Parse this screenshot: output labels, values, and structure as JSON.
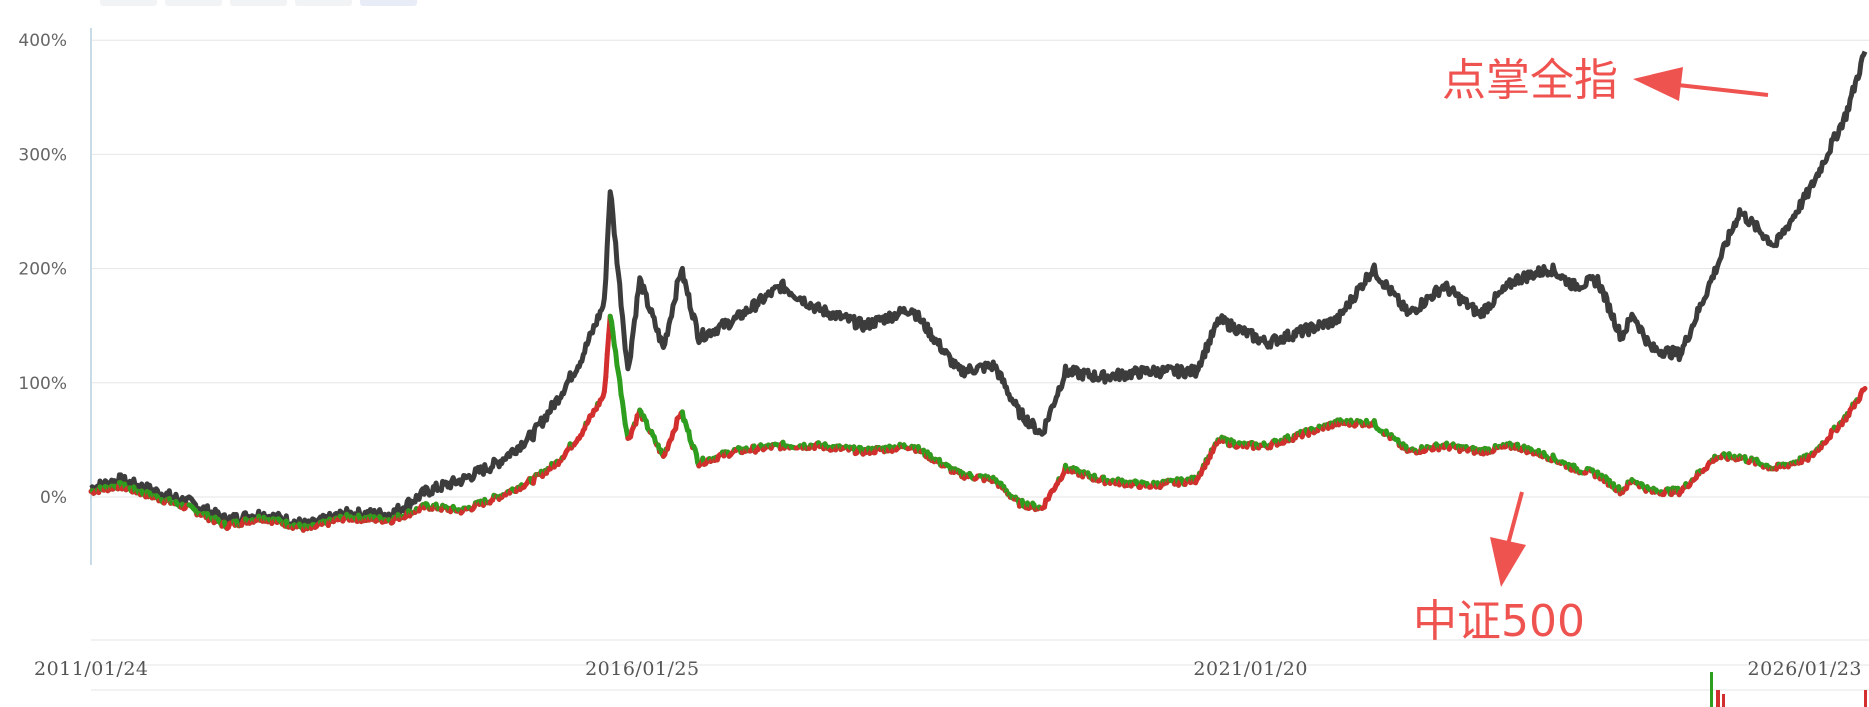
{
  "tabs": [
    "",
    "",
    "",
    "",
    ""
  ],
  "chart_data": {
    "type": "line",
    "x_labels": [
      "2011/01/24",
      "2016/01/25",
      "2021/01/20",
      "2026/01/23"
    ],
    "y_ticks": [
      "400%",
      "300%",
      "200%",
      "100%",
      "0%"
    ],
    "ylim": [
      -60,
      400
    ],
    "y_unit": "%",
    "grid": true,
    "colors": {
      "main": "#3c3c3c",
      "up": "#d32f2f",
      "down": "#2e9e1f",
      "annotation": "#ef5350"
    },
    "annotations": [
      {
        "text": "点掌全指",
        "target_series": "点掌全指"
      },
      {
        "text": "中证500",
        "target_series": "中证500"
      }
    ],
    "series": [
      {
        "name": "点掌全指",
        "x": [
          2011.06,
          2011.3,
          2011.6,
          2011.9,
          2012.2,
          2012.5,
          2012.9,
          2013.2,
          2013.6,
          2013.9,
          2014.2,
          2014.5,
          2014.8,
          2015.0,
          2015.2,
          2015.4,
          2015.45,
          2015.6,
          2015.7,
          2015.9,
          2016.05,
          2016.2,
          2016.5,
          2016.9,
          2017.2,
          2017.6,
          2018.0,
          2018.4,
          2018.7,
          2018.9,
          2019.1,
          2019.3,
          2019.6,
          2020.0,
          2020.4,
          2020.6,
          2020.8,
          2021.0,
          2021.3,
          2021.6,
          2021.9,
          2022.2,
          2022.5,
          2022.8,
          2023.1,
          2023.4,
          2023.6,
          2023.8,
          2024.0,
          2024.1,
          2024.25,
          2024.5,
          2024.8,
          2025.0,
          2025.3,
          2025.6,
          2025.9,
          2026.06
        ],
        "y": [
          8,
          15,
          5,
          -5,
          -20,
          -15,
          -25,
          -15,
          -15,
          5,
          15,
          30,
          55,
          85,
          120,
          170,
          270,
          110,
          190,
          130,
          200,
          140,
          155,
          185,
          165,
          150,
          165,
          110,
          115,
          75,
          55,
          110,
          105,
          110,
          110,
          155,
          145,
          135,
          145,
          155,
          200,
          160,
          185,
          160,
          190,
          200,
          185,
          190,
          140,
          160,
          130,
          125,
          200,
          250,
          220,
          270,
          335,
          390
        ]
      },
      {
        "name": "中证500",
        "x": [
          2011.06,
          2011.3,
          2011.6,
          2011.9,
          2012.2,
          2012.5,
          2012.9,
          2013.2,
          2013.6,
          2013.9,
          2014.2,
          2014.5,
          2014.8,
          2015.0,
          2015.2,
          2015.4,
          2015.45,
          2015.6,
          2015.7,
          2015.9,
          2016.05,
          2016.2,
          2016.5,
          2016.9,
          2017.2,
          2017.6,
          2018.0,
          2018.4,
          2018.7,
          2018.9,
          2019.1,
          2019.3,
          2019.6,
          2020.0,
          2020.4,
          2020.6,
          2020.8,
          2021.0,
          2021.3,
          2021.6,
          2021.9,
          2022.2,
          2022.5,
          2022.8,
          2023.1,
          2023.4,
          2023.6,
          2023.8,
          2024.0,
          2024.1,
          2024.25,
          2024.5,
          2024.8,
          2025.0,
          2025.3,
          2025.6,
          2025.9,
          2026.06
        ],
        "y": [
          5,
          10,
          0,
          -10,
          -25,
          -18,
          -28,
          -18,
          -20,
          -8,
          -12,
          0,
          15,
          30,
          55,
          90,
          160,
          50,
          75,
          35,
          75,
          30,
          40,
          45,
          45,
          40,
          45,
          20,
          15,
          -5,
          -10,
          25,
          15,
          10,
          15,
          50,
          45,
          45,
          55,
          65,
          65,
          40,
          45,
          40,
          45,
          35,
          25,
          20,
          5,
          15,
          5,
          5,
          35,
          35,
          25,
          35,
          70,
          95
        ]
      }
    ]
  }
}
